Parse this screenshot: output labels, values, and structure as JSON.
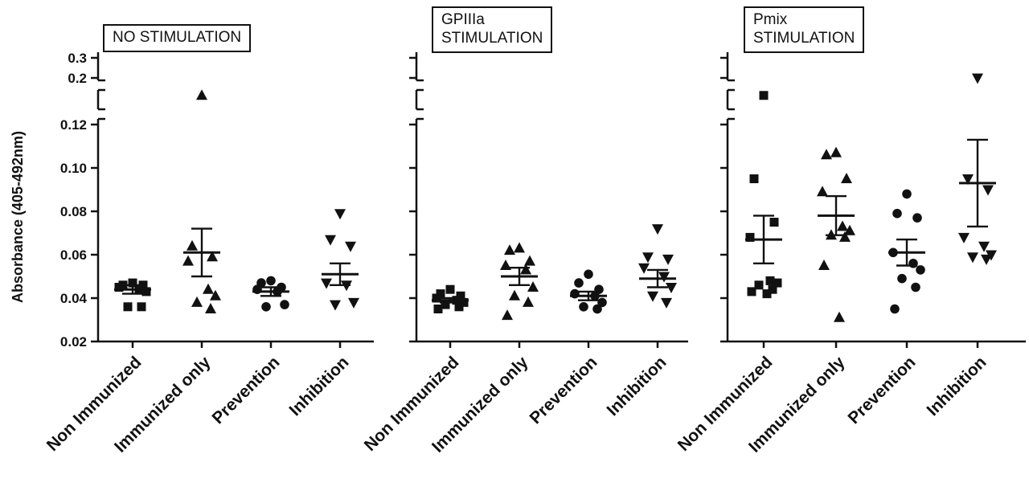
{
  "figure": {
    "background": "#ffffff",
    "ink": "#111111",
    "ylabel": "Absorbance (405-492nm)"
  },
  "chart_data": [
    {
      "type": "scatter",
      "title": "NO STIMULATION",
      "show_y_tick_labels": true,
      "y_axis": {
        "label": "Absorbance (405-492nm)",
        "main_ticks": [
          0.02,
          0.04,
          0.06,
          0.08,
          0.1,
          0.12
        ],
        "main_tick_labels": [
          "0.02",
          "0.04",
          "0.06",
          "0.08",
          "0.10",
          "0.12"
        ],
        "upper_ticks": [
          0.2,
          0.3
        ],
        "upper_tick_labels": [
          "0.2",
          "0.3"
        ],
        "break_between": [
          0.12,
          0.2
        ]
      },
      "categories": [
        "Non Immunized",
        "Immunized only",
        "Prevention",
        "Inhibition"
      ],
      "groups": [
        {
          "label": "Non Immunized",
          "marker": "square",
          "mean": 0.044,
          "sem": 0.002,
          "values": [
            0.047,
            0.046,
            0.046,
            0.045,
            0.044,
            0.043,
            0.036,
            0.036
          ]
        },
        {
          "label": "Immunized only",
          "marker": "triangle-up",
          "mean": 0.061,
          "sem": 0.011,
          "values": [
            0.17,
            0.064,
            0.059,
            0.057,
            0.044,
            0.041,
            0.038,
            0.035
          ]
        },
        {
          "label": "Prevention",
          "marker": "circle",
          "mean": 0.043,
          "sem": 0.002,
          "values": [
            0.048,
            0.047,
            0.045,
            0.044,
            0.043,
            0.037,
            0.036
          ]
        },
        {
          "label": "Inhibition",
          "marker": "triangle-down",
          "mean": 0.051,
          "sem": 0.005,
          "values": [
            0.079,
            0.067,
            0.064,
            0.047,
            0.046,
            0.038,
            0.037
          ]
        }
      ]
    },
    {
      "type": "scatter",
      "title": "GPIIIa\nSTIMULATION",
      "show_y_tick_labels": false,
      "y_axis": {
        "label": "Absorbance (405-492nm)",
        "main_ticks": [
          0.02,
          0.04,
          0.06,
          0.08,
          0.1,
          0.12
        ],
        "main_tick_labels": [
          "0.02",
          "0.04",
          "0.06",
          "0.08",
          "0.10",
          "0.12"
        ],
        "upper_ticks": [
          0.2,
          0.3
        ],
        "upper_tick_labels": [
          "0.2",
          "0.3"
        ],
        "break_between": [
          0.12,
          0.2
        ]
      },
      "categories": [
        "Non Immunized",
        "Immunized only",
        "Prevention",
        "Inhibition"
      ],
      "groups": [
        {
          "label": "Non Immunized",
          "marker": "square",
          "mean": 0.039,
          "sem": 0.001,
          "values": [
            0.044,
            0.042,
            0.041,
            0.04,
            0.039,
            0.038,
            0.037,
            0.036,
            0.035
          ]
        },
        {
          "label": "Immunized only",
          "marker": "triangle-up",
          "mean": 0.05,
          "sem": 0.004,
          "values": [
            0.063,
            0.062,
            0.057,
            0.055,
            0.053,
            0.045,
            0.041,
            0.038,
            0.032
          ]
        },
        {
          "label": "Prevention",
          "marker": "circle",
          "mean": 0.041,
          "sem": 0.002,
          "values": [
            0.051,
            0.047,
            0.044,
            0.042,
            0.041,
            0.038,
            0.036,
            0.035
          ]
        },
        {
          "label": "Inhibition",
          "marker": "triangle-down",
          "mean": 0.049,
          "sem": 0.004,
          "values": [
            0.072,
            0.059,
            0.058,
            0.054,
            0.05,
            0.045,
            0.041,
            0.038
          ]
        }
      ]
    },
    {
      "type": "scatter",
      "title": "Pmix\nSTIMULATION",
      "show_y_tick_labels": false,
      "y_axis": {
        "label": "Absorbance (405-492nm)",
        "main_ticks": [
          0.02,
          0.04,
          0.06,
          0.08,
          0.1,
          0.12
        ],
        "main_tick_labels": [
          "0.02",
          "0.04",
          "0.06",
          "0.08",
          "0.10",
          "0.12"
        ],
        "upper_ticks": [
          0.2,
          0.3
        ],
        "upper_tick_labels": [
          "0.2",
          "0.3"
        ],
        "break_between": [
          0.12,
          0.2
        ]
      },
      "categories": [
        "Non Immunized",
        "Immunized only",
        "Prevention",
        "Inhibition"
      ],
      "groups": [
        {
          "label": "Non Immunized",
          "marker": "square",
          "mean": 0.067,
          "sem": 0.011,
          "values": [
            0.17,
            0.095,
            0.075,
            0.068,
            0.048,
            0.047,
            0.046,
            0.044,
            0.043,
            0.042
          ]
        },
        {
          "label": "Immunized only",
          "marker": "triangle-up",
          "mean": 0.078,
          "sem": 0.009,
          "values": [
            0.107,
            0.106,
            0.095,
            0.089,
            0.073,
            0.071,
            0.069,
            0.068,
            0.055,
            0.031
          ]
        },
        {
          "label": "Prevention",
          "marker": "circle",
          "mean": 0.061,
          "sem": 0.006,
          "values": [
            0.088,
            0.079,
            0.077,
            0.061,
            0.056,
            0.053,
            0.049,
            0.045,
            0.035
          ]
        },
        {
          "label": "Inhibition",
          "marker": "triangle-down",
          "mean": 0.093,
          "sem": 0.02,
          "values": [
            0.2,
            0.095,
            0.09,
            0.068,
            0.064,
            0.06,
            0.059,
            0.058
          ]
        }
      ]
    }
  ]
}
